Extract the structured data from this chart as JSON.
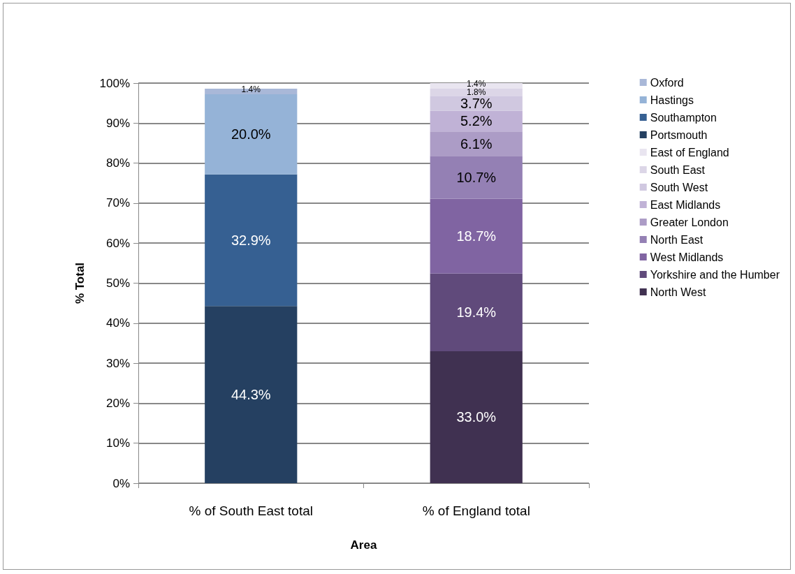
{
  "chart_data": {
    "type": "bar",
    "stacked": true,
    "xlabel": "Area",
    "ylabel": "% Total",
    "categories": [
      "% of South East total",
      "% of England total"
    ],
    "ylim": [
      0,
      100
    ],
    "yticks": [
      {
        "value": 0,
        "label": "0%"
      },
      {
        "value": 10,
        "label": "10%"
      },
      {
        "value": 20,
        "label": "20%"
      },
      {
        "value": 30,
        "label": "30%"
      },
      {
        "value": 40,
        "label": "40%"
      },
      {
        "value": 50,
        "label": "50%"
      },
      {
        "value": 60,
        "label": "60%"
      },
      {
        "value": 70,
        "label": "70%"
      },
      {
        "value": 80,
        "label": "80%"
      },
      {
        "value": 90,
        "label": "90%"
      },
      {
        "value": 100,
        "label": "100%"
      }
    ],
    "grid": "y",
    "legend": "right",
    "series": [
      {
        "name": "North West",
        "color": "#403151",
        "values": [
          null,
          33.0
        ],
        "value_labels": [
          null,
          "33.0%"
        ]
      },
      {
        "name": "Yorkshire and the Humber",
        "color": "#604a7b",
        "values": [
          null,
          19.4
        ],
        "value_labels": [
          null,
          "19.4%"
        ]
      },
      {
        "name": "West Midlands",
        "color": "#8064a2",
        "values": [
          null,
          18.7
        ],
        "value_labels": [
          null,
          "18.7%"
        ]
      },
      {
        "name": "North East",
        "color": "#9480b4",
        "values": [
          null,
          10.7
        ],
        "value_labels": [
          null,
          "10.7%"
        ]
      },
      {
        "name": "Greater London",
        "color": "#ac9cc6",
        "values": [
          null,
          6.1
        ],
        "value_labels": [
          null,
          "6.1%"
        ]
      },
      {
        "name": "East Midlands",
        "color": "#c0b2d6",
        "values": [
          null,
          5.2
        ],
        "value_labels": [
          null,
          "5.2%"
        ]
      },
      {
        "name": "South West",
        "color": "#d0c8e0",
        "values": [
          null,
          3.7
        ],
        "value_labels": [
          null,
          "3.7%"
        ]
      },
      {
        "name": "South East",
        "color": "#dcd6e7",
        "values": [
          null,
          1.8
        ],
        "value_labels": [
          null,
          "1.8%"
        ]
      },
      {
        "name": "East of England",
        "color": "#e9e5f0",
        "values": [
          null,
          1.4
        ],
        "value_labels": [
          null,
          "1.4%"
        ]
      },
      {
        "name": "Portsmouth",
        "color": "#254061",
        "values": [
          44.3,
          null
        ],
        "value_labels": [
          "44.3%",
          null
        ]
      },
      {
        "name": "Southampton",
        "color": "#366092",
        "values": [
          32.9,
          null
        ],
        "value_labels": [
          "32.9%",
          null
        ]
      },
      {
        "name": "Hastings",
        "color": "#95b3d7",
        "values": [
          20.0,
          null
        ],
        "value_labels": [
          "20.0%",
          null
        ]
      },
      {
        "name": "Oxford",
        "color": "#a9b8d8",
        "values": [
          1.4,
          null
        ],
        "value_labels": [
          "1.4%",
          null
        ]
      }
    ]
  }
}
